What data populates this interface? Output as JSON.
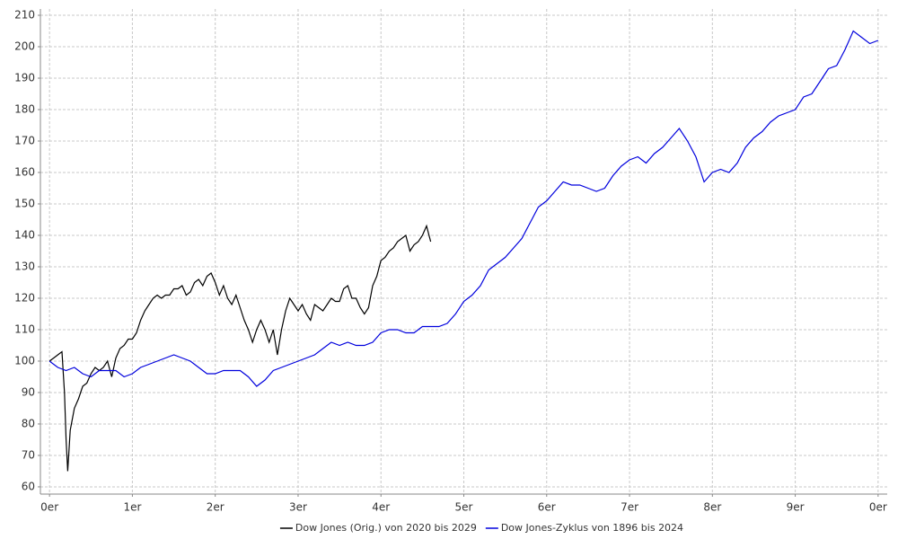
{
  "chart_data": {
    "type": "line",
    "xlim": [
      -0.11,
      10.11
    ],
    "ylim": [
      57.7,
      212
    ],
    "xticks": [
      {
        "value": 0,
        "label": "0er"
      },
      {
        "value": 1,
        "label": "1er"
      },
      {
        "value": 2,
        "label": "2er"
      },
      {
        "value": 3,
        "label": "3er"
      },
      {
        "value": 4,
        "label": "4er"
      },
      {
        "value": 5,
        "label": "5er"
      },
      {
        "value": 6,
        "label": "6er"
      },
      {
        "value": 7,
        "label": "7er"
      },
      {
        "value": 8,
        "label": "8er"
      },
      {
        "value": 9,
        "label": "9er"
      },
      {
        "value": 10,
        "label": "0er"
      }
    ],
    "yticks": [
      60,
      70,
      80,
      90,
      100,
      110,
      120,
      130,
      140,
      150,
      160,
      170,
      180,
      190,
      200,
      210
    ],
    "grid": true,
    "legend": "bottom",
    "series": [
      {
        "name": "Dow Jones (Orig.) von 2020 bis 2029",
        "color": "#000000",
        "x": [
          0,
          0.05,
          0.1,
          0.15,
          0.18,
          0.2,
          0.22,
          0.25,
          0.3,
          0.35,
          0.4,
          0.45,
          0.5,
          0.55,
          0.6,
          0.65,
          0.7,
          0.75,
          0.8,
          0.85,
          0.9,
          0.95,
          1.0,
          1.05,
          1.1,
          1.15,
          1.2,
          1.25,
          1.3,
          1.35,
          1.4,
          1.45,
          1.5,
          1.55,
          1.6,
          1.65,
          1.7,
          1.75,
          1.8,
          1.85,
          1.9,
          1.95,
          2.0,
          2.05,
          2.1,
          2.15,
          2.2,
          2.25,
          2.3,
          2.35,
          2.4,
          2.45,
          2.5,
          2.55,
          2.6,
          2.65,
          2.7,
          2.75,
          2.8,
          2.85,
          2.9,
          2.95,
          3.0,
          3.05,
          3.1,
          3.15,
          3.2,
          3.25,
          3.3,
          3.35,
          3.4,
          3.45,
          3.5,
          3.55,
          3.6,
          3.65,
          3.7,
          3.75,
          3.8,
          3.85,
          3.9,
          3.95,
          4.0,
          4.05,
          4.1,
          4.15,
          4.2,
          4.25,
          4.3,
          4.35,
          4.4,
          4.45,
          4.5,
          4.55,
          4.6
        ],
        "values": [
          100,
          101,
          102,
          103,
          90,
          75,
          65,
          78,
          85,
          88,
          92,
          93,
          96,
          98,
          97,
          98,
          100,
          95,
          101,
          104,
          105,
          107,
          107,
          109,
          113,
          116,
          118,
          120,
          121,
          120,
          121,
          121,
          123,
          123,
          124,
          121,
          122,
          125,
          126,
          124,
          127,
          128,
          125,
          121,
          124,
          120,
          118,
          121,
          117,
          113,
          110,
          106,
          110,
          113,
          110,
          106,
          110,
          102,
          110,
          116,
          120,
          118,
          116,
          118,
          115,
          113,
          118,
          117,
          116,
          118,
          120,
          119,
          119,
          123,
          124,
          120,
          120,
          117,
          115,
          117,
          124,
          127,
          132,
          133,
          135,
          136,
          138,
          139,
          140,
          135,
          137,
          138,
          140,
          143,
          138
        ]
      },
      {
        "name": "Dow Jones-Zyklus von 1896 bis 2024",
        "color": "#0000dd",
        "x": [
          0,
          0.1,
          0.2,
          0.3,
          0.4,
          0.5,
          0.6,
          0.7,
          0.8,
          0.9,
          1.0,
          1.1,
          1.2,
          1.3,
          1.4,
          1.5,
          1.6,
          1.7,
          1.8,
          1.9,
          2.0,
          2.1,
          2.2,
          2.3,
          2.4,
          2.5,
          2.6,
          2.7,
          2.8,
          2.9,
          3.0,
          3.1,
          3.2,
          3.3,
          3.4,
          3.5,
          3.6,
          3.7,
          3.8,
          3.9,
          4.0,
          4.1,
          4.2,
          4.3,
          4.4,
          4.5,
          4.6,
          4.7,
          4.8,
          4.9,
          5.0,
          5.1,
          5.2,
          5.3,
          5.4,
          5.5,
          5.6,
          5.7,
          5.8,
          5.9,
          6.0,
          6.1,
          6.2,
          6.3,
          6.4,
          6.5,
          6.6,
          6.7,
          6.8,
          6.9,
          7.0,
          7.1,
          7.2,
          7.3,
          7.4,
          7.5,
          7.6,
          7.7,
          7.8,
          7.9,
          8.0,
          8.1,
          8.2,
          8.3,
          8.4,
          8.5,
          8.6,
          8.7,
          8.8,
          8.9,
          9.0,
          9.1,
          9.2,
          9.3,
          9.4,
          9.5,
          9.6,
          9.7,
          9.8,
          9.9,
          10.0
        ],
        "values": [
          100,
          98,
          97,
          98,
          96,
          95,
          97,
          97,
          97,
          95,
          96,
          98,
          99,
          100,
          101,
          102,
          101,
          100,
          98,
          96,
          96,
          97,
          97,
          97,
          95,
          92,
          94,
          97,
          98,
          99,
          100,
          101,
          102,
          104,
          106,
          105,
          106,
          105,
          105,
          106,
          109,
          110,
          110,
          109,
          109,
          111,
          111,
          111,
          112,
          115,
          119,
          121,
          124,
          129,
          131,
          133,
          136,
          139,
          144,
          149,
          151,
          154,
          157,
          156,
          156,
          155,
          154,
          155,
          159,
          162,
          164,
          165,
          163,
          166,
          168,
          171,
          174,
          170,
          165,
          157,
          160,
          161,
          160,
          163,
          168,
          171,
          173,
          176,
          178,
          179,
          180,
          184,
          185,
          189,
          193,
          194,
          199,
          205,
          203,
          201,
          202
        ]
      }
    ]
  }
}
